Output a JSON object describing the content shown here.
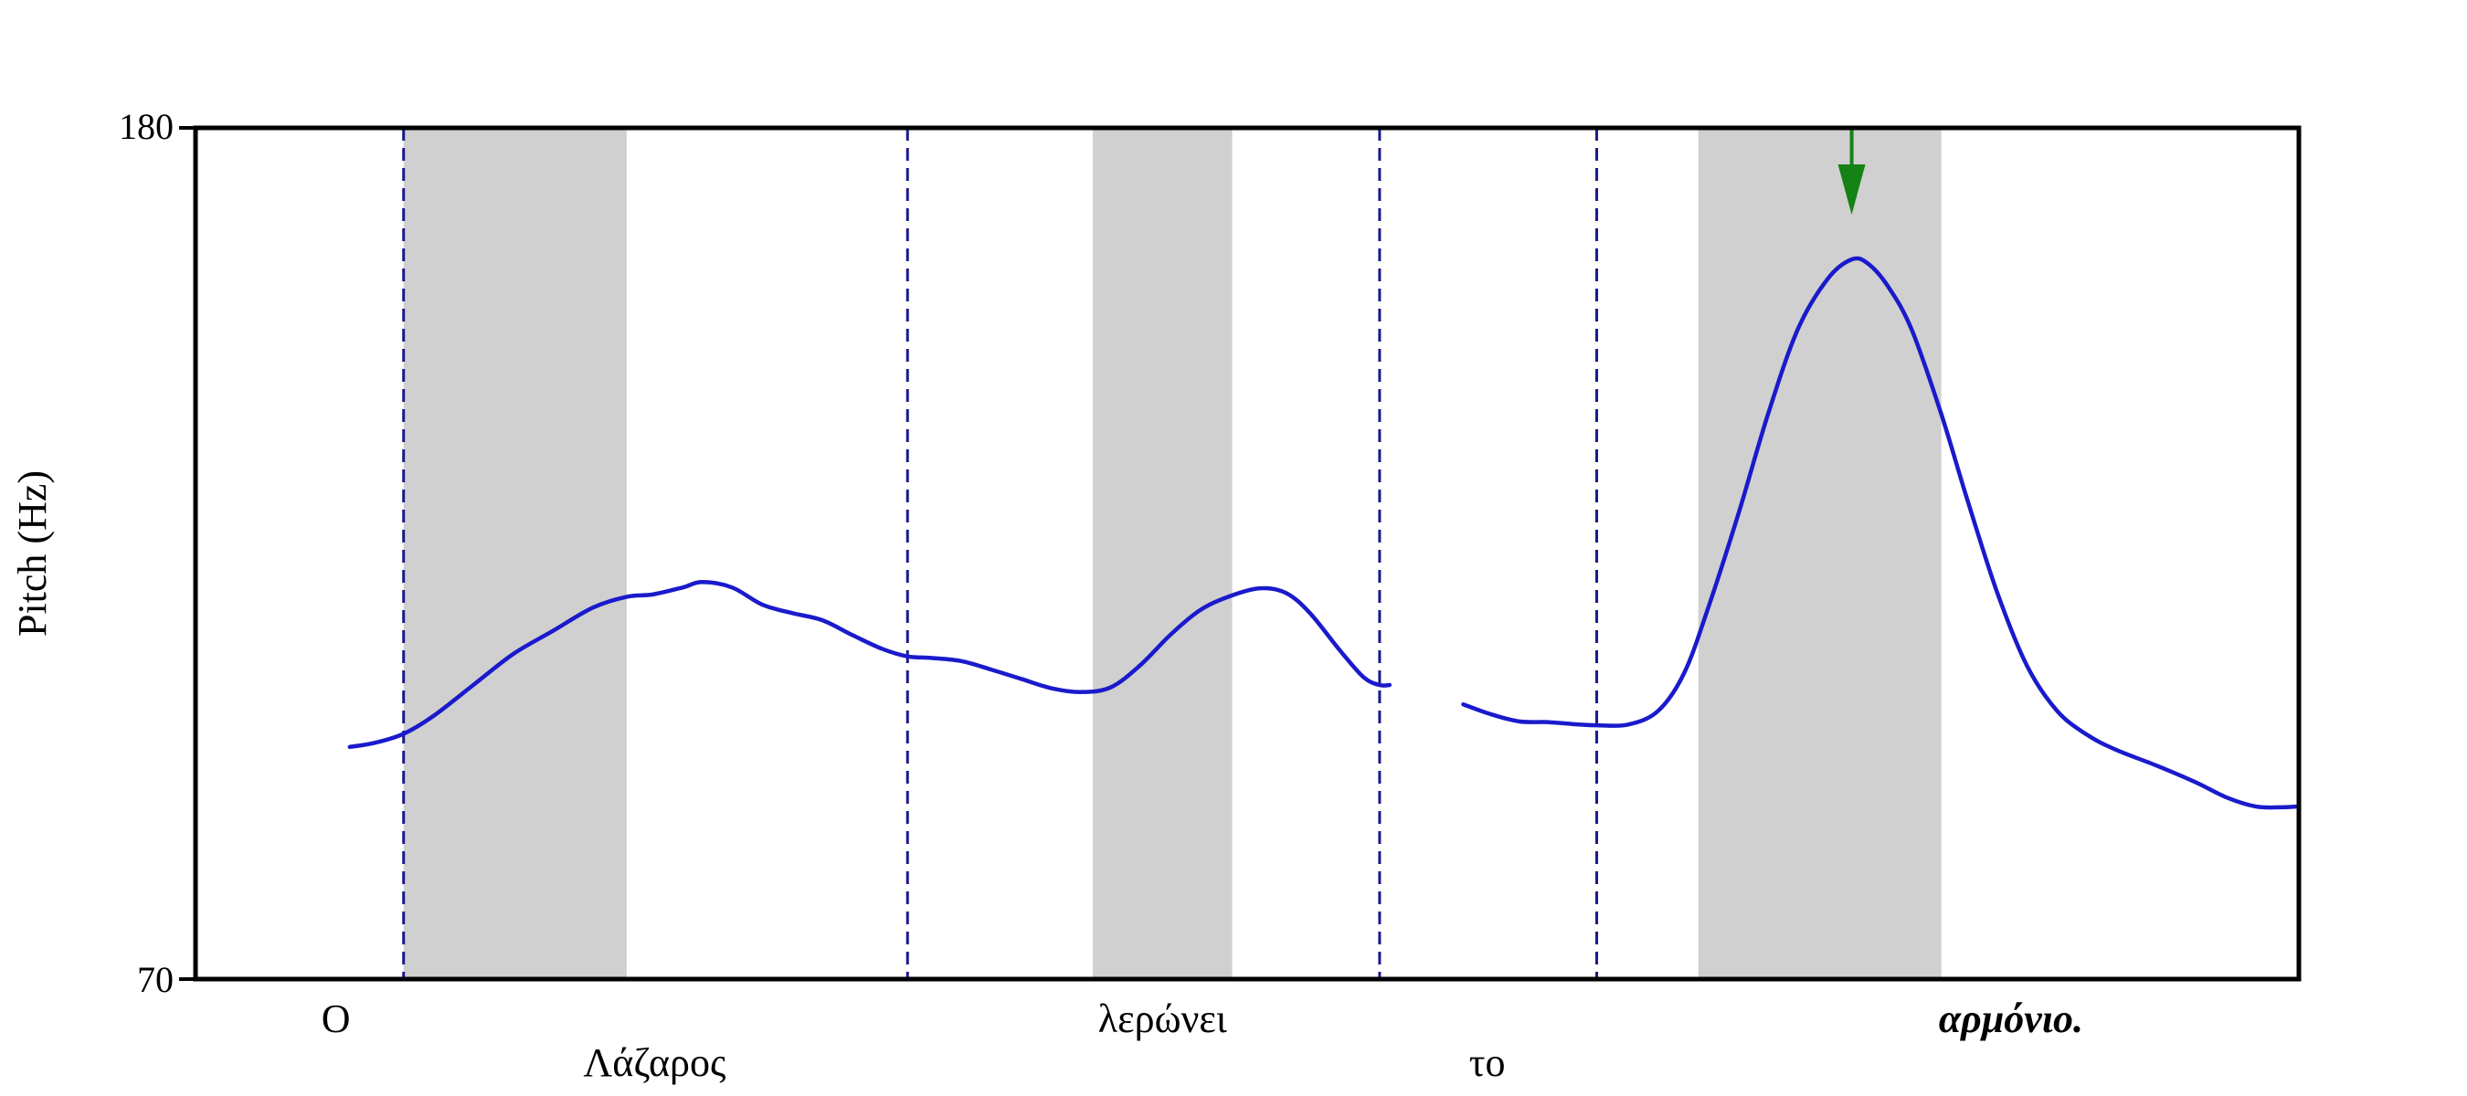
{
  "chart_data": {
    "type": "line",
    "ylabel": "Pitch (Hz)",
    "xlabel": "",
    "ylim": [
      70,
      180
    ],
    "xlim": [
      0,
      1
    ],
    "yticks": [
      70,
      180
    ],
    "grid": false,
    "colors": {
      "line": "#1a1acc",
      "boundary": "#1a1a8c",
      "shade": "#d0d0d0",
      "arrow": "#148214"
    },
    "words": [
      {
        "text": "Ο",
        "x": 0.031,
        "row": 1,
        "italic": false
      },
      {
        "text": "Λάζαρος",
        "x": 0.191,
        "row": 2,
        "italic": false
      },
      {
        "text": "λερώνει",
        "x": 0.446,
        "row": 1,
        "italic": false
      },
      {
        "text": "το",
        "x": 0.609,
        "row": 2,
        "italic": false
      },
      {
        "text": "αρμόνιο.",
        "x": 0.872,
        "row": 1,
        "italic": true
      }
    ],
    "stressed_syllables": [
      {
        "start": 0.065,
        "end": 0.177
      },
      {
        "start": 0.411,
        "end": 0.481
      },
      {
        "start": 0.715,
        "end": 0.837
      }
    ],
    "word_boundaries": [
      0.065,
      0.318,
      0.555,
      0.664
    ],
    "focus_arrow_x": 0.792,
    "series": [
      {
        "segments": [
          [
            [
              0.038,
              100
            ],
            [
              0.05,
              100.5
            ],
            [
              0.065,
              101.7
            ],
            [
              0.08,
              104
            ],
            [
              0.1,
              108
            ],
            [
              0.12,
              112
            ],
            [
              0.14,
              115
            ],
            [
              0.16,
              118
            ],
            [
              0.177,
              119.4
            ],
            [
              0.19,
              119.7
            ],
            [
              0.205,
              120.6
            ],
            [
              0.215,
              121.3
            ],
            [
              0.23,
              120.6
            ],
            [
              0.245,
              118.4
            ],
            [
              0.26,
              117.3
            ],
            [
              0.275,
              116.4
            ],
            [
              0.29,
              114.5
            ],
            [
              0.305,
              112.7
            ],
            [
              0.318,
              111.7
            ],
            [
              0.33,
              111.5
            ],
            [
              0.345,
              111.1
            ],
            [
              0.36,
              110
            ],
            [
              0.375,
              108.8
            ],
            [
              0.39,
              107.6
            ],
            [
              0.405,
              107.1
            ],
            [
              0.42,
              107.7
            ],
            [
              0.435,
              110.6
            ],
            [
              0.45,
              114.5
            ],
            [
              0.465,
              117.7
            ],
            [
              0.48,
              119.5
            ],
            [
              0.495,
              120.5
            ],
            [
              0.508,
              119.9
            ],
            [
              0.52,
              117.3
            ],
            [
              0.535,
              112.5
            ],
            [
              0.547,
              109
            ],
            [
              0.555,
              108
            ],
            [
              0.56,
              108
            ]
          ],
          [
            [
              0.597,
              105.5
            ],
            [
              0.61,
              104.3
            ],
            [
              0.625,
              103.3
            ],
            [
              0.64,
              103.2
            ],
            [
              0.655,
              102.9
            ],
            [
              0.664,
              102.8
            ],
            [
              0.68,
              102.9
            ],
            [
              0.695,
              104.7
            ],
            [
              0.708,
              109.6
            ],
            [
              0.72,
              118
            ],
            [
              0.735,
              130
            ],
            [
              0.75,
              143
            ],
            [
              0.765,
              154
            ],
            [
              0.78,
              160.5
            ],
            [
              0.792,
              163
            ],
            [
              0.8,
              162.5
            ],
            [
              0.81,
              159.6
            ],
            [
              0.822,
              154
            ],
            [
              0.837,
              143
            ],
            [
              0.85,
              132
            ],
            [
              0.865,
              120
            ],
            [
              0.88,
              110.5
            ],
            [
              0.895,
              104.7
            ],
            [
              0.91,
              101.6
            ],
            [
              0.925,
              99.6
            ],
            [
              0.945,
              97.6
            ],
            [
              0.965,
              95.4
            ],
            [
              0.98,
              93.5
            ],
            [
              0.995,
              92.3
            ],
            [
              1.007,
              92.2
            ],
            [
              1.015,
              92.3
            ]
          ]
        ]
      }
    ]
  }
}
